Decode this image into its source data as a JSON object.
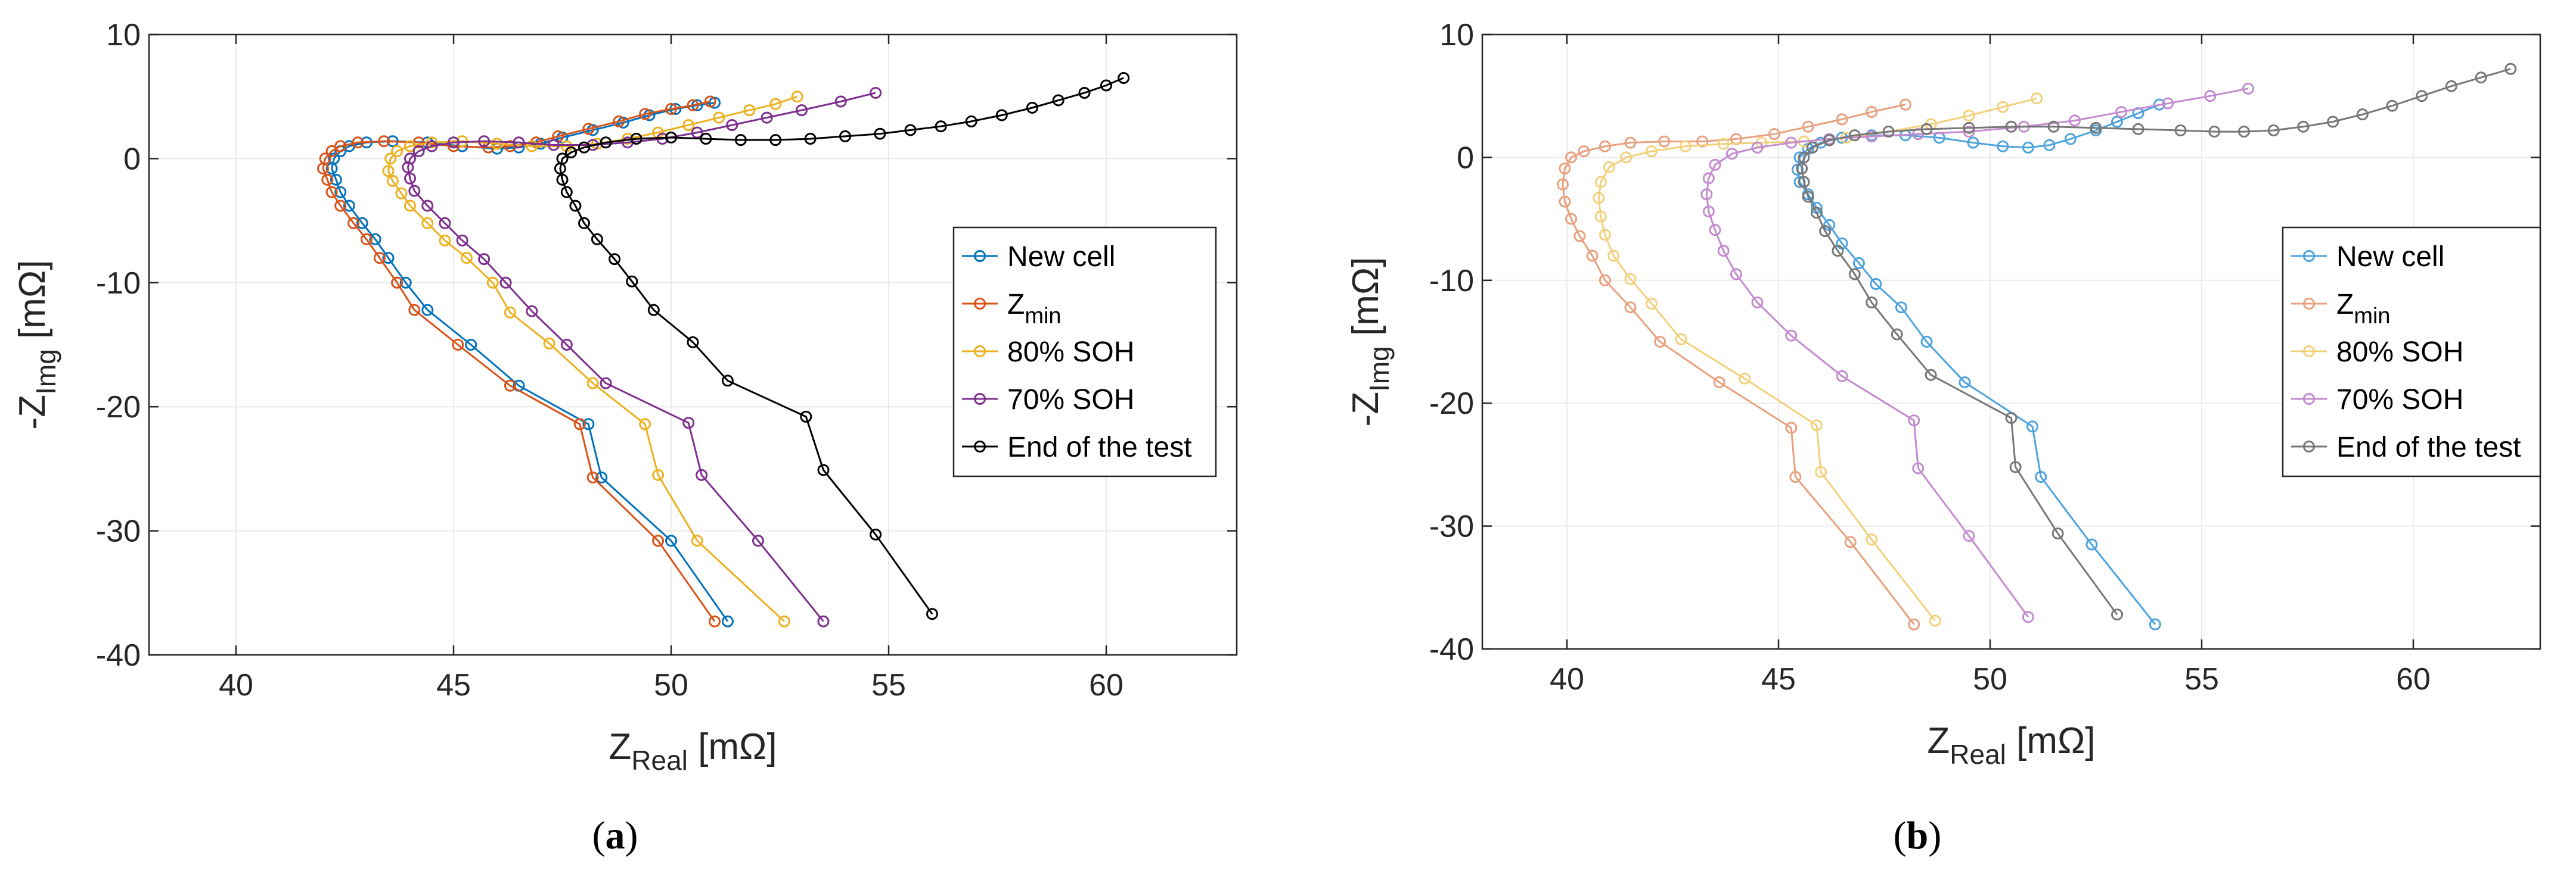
{
  "figure": {
    "panels": [
      "(a)",
      "(b)"
    ],
    "panel_letters": [
      "a",
      "b"
    ],
    "unit_symbol": "[mΩ]"
  },
  "chart_data": [
    {
      "type": "line",
      "panel": "(a)",
      "xlabel": "Z_Real [mΩ]",
      "ylabel": "-Z_Img [mΩ]",
      "xlabel_main": "Z",
      "xlabel_sub": "Real",
      "ylabel_prefix": "-Z",
      "ylabel_sub": "Img",
      "xlim": [
        38,
        63
      ],
      "ylim": [
        -40,
        10
      ],
      "xticks": [
        40,
        45,
        50,
        55,
        60
      ],
      "yticks": [
        10,
        0,
        -10,
        -20,
        -30,
        -40
      ],
      "grid": true,
      "legend_position": "right",
      "marker_fill": "none",
      "series": [
        {
          "name": "New cell",
          "name_main": "New cell",
          "name_sub": "",
          "color": "#0072BD",
          "x": [
            51.3,
            50,
            48.4,
            48.1,
            46.5,
            45.4,
            44.4,
            43.9,
            43.5,
            43.2,
            42.9,
            42.6,
            42.4,
            42.3,
            42.2,
            42.25,
            42.4,
            42.6,
            43.0,
            43.6,
            44.4,
            45.2,
            46.0,
            46.5,
            47.0,
            47.5,
            48.2,
            48.9,
            49.5,
            50.1,
            50.6,
            51.0
          ],
          "y": [
            -37.3,
            -30.8,
            -25.7,
            -21.4,
            -18.3,
            -15,
            -12.2,
            -10,
            -8,
            -6.5,
            -5.2,
            -3.8,
            -2.7,
            -1.7,
            -0.8,
            0,
            0.6,
            1.0,
            1.3,
            1.4,
            1.3,
            1.0,
            0.8,
            0.9,
            1.2,
            1.7,
            2.3,
            2.9,
            3.5,
            4.0,
            4.3,
            4.5
          ]
        },
        {
          "name": "Z_min",
          "name_main": "Z",
          "name_sub": "min",
          "color": "#D95319",
          "x": [
            51.0,
            49.7,
            48.2,
            47.9,
            46.3,
            45.1,
            44.1,
            43.7,
            43.3,
            43.0,
            42.7,
            42.4,
            42.2,
            42.1,
            42.0,
            42.05,
            42.2,
            42.4,
            42.8,
            43.4,
            44.2,
            45.0,
            45.8,
            46.3,
            46.9,
            47.4,
            48.1,
            48.8,
            49.4,
            50.0,
            50.5,
            50.9
          ],
          "y": [
            -37.3,
            -30.8,
            -25.7,
            -21.4,
            -18.3,
            -15,
            -12.2,
            -10,
            -8,
            -6.5,
            -5.2,
            -3.8,
            -2.7,
            -1.7,
            -0.8,
            0,
            0.6,
            1.0,
            1.3,
            1.4,
            1.3,
            1.0,
            0.9,
            1.0,
            1.3,
            1.8,
            2.4,
            3.0,
            3.6,
            4.0,
            4.3,
            4.6
          ]
        },
        {
          "name": "80% SOH",
          "name_main": "80% SOH",
          "name_sub": "",
          "color": "#EDB120",
          "x": [
            52.6,
            50.6,
            49.7,
            49.4,
            48.2,
            47.2,
            46.3,
            45.9,
            45.3,
            44.8,
            44.4,
            44.0,
            43.8,
            43.6,
            43.5,
            43.55,
            43.7,
            44.0,
            44.5,
            45.2,
            46.0,
            46.8,
            47.6,
            48.3,
            49.0,
            49.7,
            50.4,
            51.1,
            51.8,
            52.4,
            52.9
          ],
          "y": [
            -37.3,
            -30.8,
            -25.5,
            -21.4,
            -18.1,
            -14.9,
            -12.4,
            -10,
            -8,
            -6.6,
            -5.2,
            -3.8,
            -2.8,
            -1.8,
            -1,
            0,
            0.6,
            1.0,
            1.3,
            1.4,
            1.2,
            1.0,
            1.0,
            1.2,
            1.6,
            2.1,
            2.7,
            3.3,
            3.9,
            4.4,
            5.0
          ]
        },
        {
          "name": "70% SOH",
          "name_main": "70% SOH",
          "name_sub": "",
          "color": "#7E2F8E",
          "x": [
            53.5,
            52.0,
            50.7,
            50.4,
            48.5,
            47.6,
            46.8,
            46.2,
            45.7,
            45.2,
            44.8,
            44.4,
            44.1,
            44.0,
            43.95,
            44.0,
            44.2,
            44.5,
            45.0,
            45.7,
            46.5,
            47.3,
            48.2,
            49.0,
            49.8,
            50.6,
            51.4,
            52.2,
            53.0,
            53.9,
            54.7
          ],
          "y": [
            -37.3,
            -30.8,
            -25.5,
            -21.3,
            -18.1,
            -15,
            -12.3,
            -10,
            -8.1,
            -6.6,
            -5.2,
            -3.8,
            -2.6,
            -1.6,
            -0.7,
            0,
            0.6,
            1.0,
            1.3,
            1.4,
            1.3,
            1.1,
            1.1,
            1.3,
            1.6,
            2.1,
            2.7,
            3.3,
            3.9,
            4.6,
            5.3
          ]
        },
        {
          "name": "End of the test",
          "name_main": "End of the test",
          "name_sub": "",
          "color": "#000000",
          "x": [
            56.0,
            54.7,
            53.5,
            53.1,
            51.3,
            50.5,
            49.6,
            49.1,
            48.7,
            48.3,
            48.0,
            47.8,
            47.6,
            47.5,
            47.45,
            47.5,
            47.7,
            48.0,
            48.5,
            49.2,
            50.0,
            50.8,
            51.6,
            52.4,
            53.2,
            54.0,
            54.8,
            55.5,
            56.2,
            56.9,
            57.6,
            58.3,
            58.9,
            59.5,
            60.0,
            60.4
          ],
          "y": [
            -36.7,
            -30.3,
            -25.1,
            -20.8,
            -17.9,
            -14.8,
            -12.2,
            -9.9,
            -8.1,
            -6.5,
            -5.2,
            -3.8,
            -2.7,
            -1.7,
            -0.8,
            0,
            0.5,
            0.9,
            1.3,
            1.6,
            1.7,
            1.6,
            1.5,
            1.5,
            1.6,
            1.8,
            2.0,
            2.3,
            2.6,
            3.0,
            3.5,
            4.1,
            4.7,
            5.3,
            5.9,
            6.5
          ]
        }
      ]
    },
    {
      "type": "line",
      "panel": "(b)",
      "xlabel": "Z_Real [mΩ]",
      "ylabel": "-Z_Img [mΩ]",
      "xlabel_main": "Z",
      "xlabel_sub": "Real",
      "ylabel_prefix": "-Z",
      "ylabel_sub": "Img",
      "xlim": [
        38,
        63
      ],
      "ylim": [
        -40,
        10
      ],
      "xticks": [
        40,
        45,
        50,
        55,
        60
      ],
      "yticks": [
        10,
        0,
        -10,
        -20,
        -30,
        -40
      ],
      "grid": true,
      "legend_position": "right",
      "marker_fill": "none",
      "series": [
        {
          "name": "New cell",
          "name_main": "New cell",
          "name_sub": "",
          "color": "#4DA3DE",
          "x": [
            53.9,
            52.4,
            51.2,
            51.0,
            49.4,
            48.5,
            47.9,
            47.3,
            46.9,
            46.5,
            46.2,
            45.9,
            45.7,
            45.5,
            45.45,
            45.5,
            45.7,
            46.0,
            46.5,
            47.2,
            48.0,
            48.8,
            49.6,
            50.3,
            50.9,
            51.4,
            51.9,
            52.5,
            53.0,
            53.5,
            54.0
          ],
          "y": [
            -38,
            -31.5,
            -26,
            -21.9,
            -18.3,
            -15,
            -12.2,
            -10.3,
            -8.6,
            -7,
            -5.5,
            -4.1,
            -3.0,
            -2.0,
            -1.0,
            0,
            0.7,
            1.2,
            1.6,
            1.8,
            1.8,
            1.6,
            1.2,
            0.9,
            0.8,
            1.0,
            1.5,
            2.2,
            2.9,
            3.6,
            4.3
          ]
        },
        {
          "name": "Z_min",
          "name_main": "Z",
          "name_sub": "min",
          "color": "#E8A07E",
          "x": [
            48.2,
            46.7,
            45.4,
            45.3,
            43.6,
            42.2,
            41.5,
            40.9,
            40.6,
            40.3,
            40.1,
            39.95,
            39.9,
            39.95,
            40.1,
            40.4,
            40.9,
            41.5,
            42.3,
            43.2,
            44.0,
            44.9,
            45.7,
            46.5,
            47.2,
            48.0
          ],
          "y": [
            -38,
            -31.3,
            -26,
            -22,
            -18.3,
            -15,
            -12.2,
            -10,
            -8,
            -6.4,
            -5,
            -3.6,
            -2.2,
            -0.9,
            0,
            0.5,
            0.9,
            1.2,
            1.3,
            1.3,
            1.5,
            1.9,
            2.5,
            3.1,
            3.7,
            4.3
          ]
        },
        {
          "name": "80% SOH",
          "name_main": "80% SOH",
          "name_sub": "",
          "color": "#F3D07A",
          "x": [
            48.7,
            47.2,
            46.0,
            45.9,
            44.2,
            42.7,
            42.0,
            41.5,
            41.1,
            40.9,
            40.8,
            40.75,
            40.8,
            41.0,
            41.4,
            42.0,
            42.8,
            43.7,
            44.6,
            45.6,
            46.6,
            47.6,
            48.6,
            49.5,
            50.3,
            51.1
          ],
          "y": [
            -37.7,
            -31.1,
            -25.6,
            -21.8,
            -18,
            -14.8,
            -11.9,
            -9.9,
            -8,
            -6.3,
            -4.8,
            -3.3,
            -2.0,
            -0.8,
            0,
            0.5,
            0.9,
            1.1,
            1.2,
            1.3,
            1.6,
            2.1,
            2.7,
            3.4,
            4.1,
            4.8
          ]
        },
        {
          "name": "70% SOH",
          "name_main": "70% SOH",
          "name_sub": "",
          "color": "#C48BD0",
          "x": [
            50.9,
            49.5,
            48.3,
            48.2,
            46.5,
            45.3,
            44.5,
            44.0,
            43.7,
            43.5,
            43.35,
            43.3,
            43.35,
            43.5,
            43.9,
            44.5,
            45.3,
            46.2,
            47.2,
            48.3,
            49.5,
            50.8,
            52.0,
            53.1,
            54.2,
            55.2,
            56.1
          ],
          "y": [
            -37.4,
            -30.8,
            -25.3,
            -21.4,
            -17.8,
            -14.5,
            -11.8,
            -9.5,
            -7.6,
            -5.9,
            -4.4,
            -3.0,
            -1.7,
            -0.6,
            0.3,
            0.8,
            1.2,
            1.5,
            1.7,
            1.9,
            2.1,
            2.5,
            3.0,
            3.7,
            4.4,
            5.0,
            5.6
          ]
        },
        {
          "name": "End of the test",
          "name_main": "End of the test",
          "name_sub": "",
          "color": "#777777",
          "x": [
            53.0,
            51.6,
            50.6,
            50.5,
            48.6,
            47.8,
            47.2,
            46.8,
            46.4,
            46.1,
            45.9,
            45.7,
            45.6,
            45.55,
            45.6,
            45.8,
            46.2,
            46.8,
            47.6,
            48.5,
            49.5,
            50.5,
            51.5,
            52.5,
            53.5,
            54.5,
            55.3,
            56.0,
            56.7,
            57.4,
            58.1,
            58.8,
            59.5,
            60.2,
            60.9,
            61.6,
            62.3
          ],
          "y": [
            -37.2,
            -30.6,
            -25.2,
            -21.2,
            -17.7,
            -14.4,
            -11.8,
            -9.5,
            -7.6,
            -6,
            -4.5,
            -3.2,
            -2.0,
            -0.9,
            0,
            0.8,
            1.4,
            1.8,
            2.1,
            2.3,
            2.4,
            2.5,
            2.5,
            2.4,
            2.3,
            2.2,
            2.1,
            2.1,
            2.2,
            2.5,
            2.9,
            3.5,
            4.2,
            5.0,
            5.8,
            6.5,
            7.2
          ]
        }
      ]
    }
  ]
}
